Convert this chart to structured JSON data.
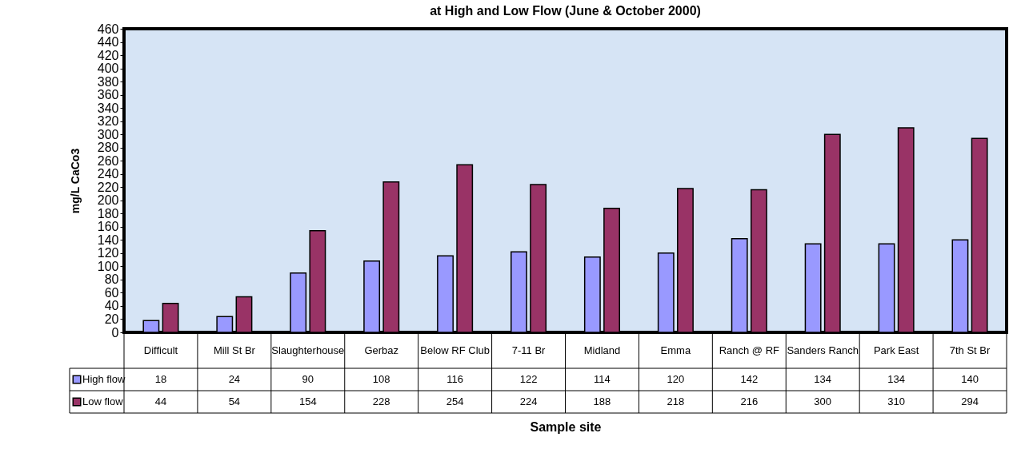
{
  "chart_data": {
    "type": "bar",
    "title": "at High and Low Flow (June & October 2000)",
    "xlabel": "Sample site",
    "ylabel": "mg/L CaCo3",
    "categories": [
      "Difficult",
      "Mill St Br",
      "Slaughterhouse",
      "Gerbaz",
      "Below RF Club",
      "7-11 Br",
      "Midland",
      "Emma",
      "Ranch @ RF",
      "Sanders Ranch",
      "Park East",
      "7th St Br"
    ],
    "series": [
      {
        "name": "High flow",
        "color": "#9999ff",
        "values": [
          18,
          24,
          90,
          108,
          116,
          122,
          114,
          120,
          142,
          134,
          134,
          140
        ]
      },
      {
        "name": "Low flow",
        "color": "#993366",
        "values": [
          44,
          54,
          154,
          228,
          254,
          224,
          188,
          218,
          216,
          300,
          310,
          294
        ]
      }
    ],
    "ylim": [
      0,
      460
    ],
    "yticks": [
      0,
      20,
      40,
      60,
      80,
      100,
      120,
      140,
      160,
      180,
      200,
      220,
      240,
      260,
      280,
      300,
      320,
      340,
      360,
      380,
      400,
      420,
      440,
      460
    ],
    "grid": false,
    "legend": "bottom",
    "data_labels": true
  }
}
